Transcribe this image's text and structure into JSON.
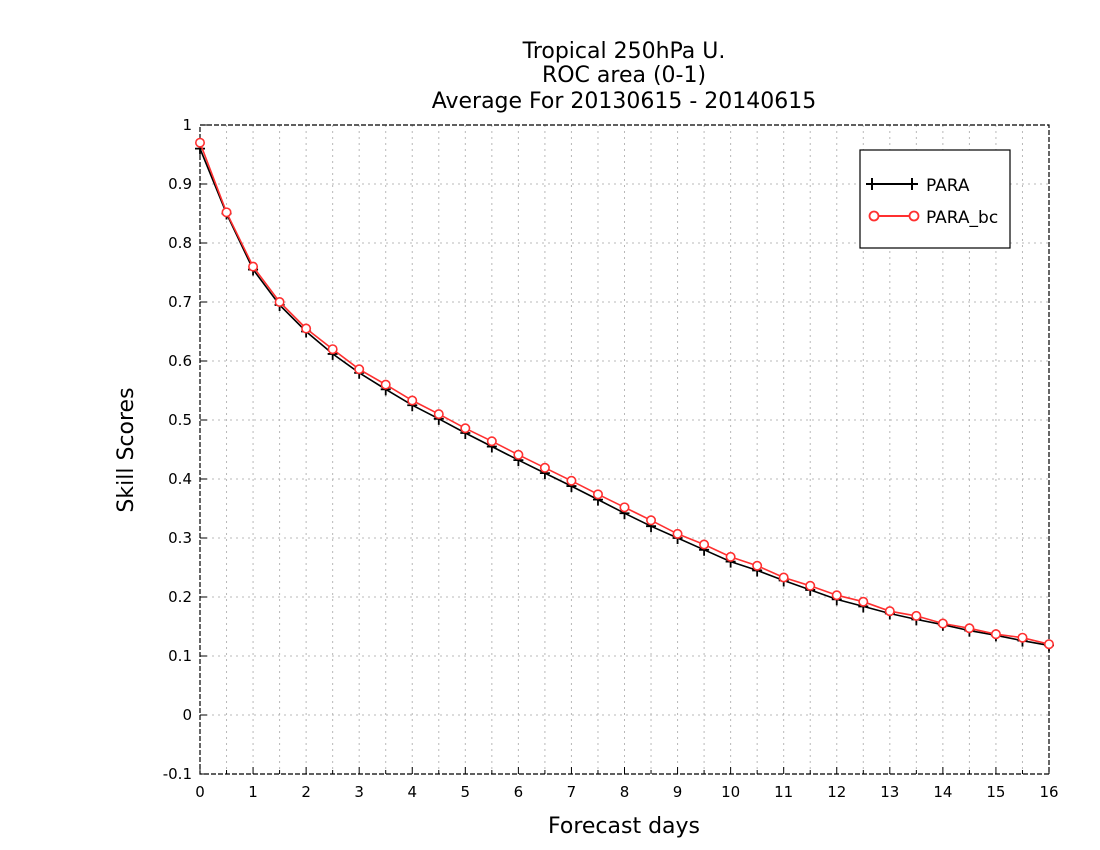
{
  "chart_data": {
    "type": "line",
    "title": [
      "Tropical 250hPa U.",
      "ROC area (0-1)",
      "Average For 20130615 - 20140615"
    ],
    "xlabel": "Forecast days",
    "ylabel": "Skill Scores",
    "xlim": [
      0,
      16
    ],
    "ylim": [
      -0.1,
      1
    ],
    "x_ticks": [
      "0",
      "1",
      "2",
      "3",
      "4",
      "5",
      "6",
      "7",
      "8",
      "9",
      "10",
      "11",
      "12",
      "13",
      "14",
      "15",
      "16"
    ],
    "y_ticks": [
      "1",
      "0.9",
      "0.8",
      "0.7",
      "0.6",
      "0.5",
      "0.4",
      "0.3",
      "0.2",
      "0.1",
      "0",
      "-0.1"
    ],
    "grid": true,
    "grid_style": "dotted",
    "legend_position": "top-right",
    "x": [
      0,
      0.5,
      1,
      1.5,
      2,
      2.5,
      3,
      3.5,
      4,
      4.5,
      5,
      5.5,
      6,
      6.5,
      7,
      7.5,
      8,
      8.5,
      9,
      9.5,
      10,
      10.5,
      11,
      11.5,
      12,
      12.5,
      13,
      13.5,
      14,
      14.5,
      15,
      15.5,
      16
    ],
    "series": [
      {
        "name": "PARA",
        "color": "#000000",
        "marker": "plus",
        "values": [
          0.96,
          0.85,
          0.755,
          0.695,
          0.65,
          0.612,
          0.58,
          0.552,
          0.525,
          0.502,
          0.478,
          0.455,
          0.432,
          0.41,
          0.388,
          0.365,
          0.342,
          0.32,
          0.3,
          0.28,
          0.26,
          0.245,
          0.228,
          0.212,
          0.196,
          0.184,
          0.172,
          0.162,
          0.153,
          0.143,
          0.135,
          0.126,
          0.118
        ]
      },
      {
        "name": "PARA_bc",
        "color": "#ff3030",
        "marker": "circle",
        "values": [
          0.97,
          0.852,
          0.76,
          0.7,
          0.655,
          0.62,
          0.586,
          0.56,
          0.533,
          0.51,
          0.486,
          0.464,
          0.441,
          0.419,
          0.397,
          0.374,
          0.352,
          0.33,
          0.307,
          0.289,
          0.268,
          0.253,
          0.233,
          0.219,
          0.203,
          0.192,
          0.176,
          0.168,
          0.155,
          0.147,
          0.137,
          0.131,
          0.12
        ]
      }
    ]
  }
}
